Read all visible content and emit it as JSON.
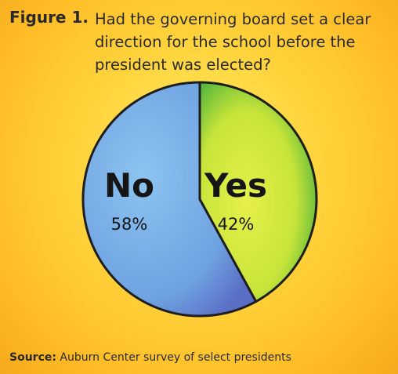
{
  "figure_label": "Figure 1.",
  "question": "Had the governing board set a clear direction for the school before the president was elected?",
  "source_label": "Source:",
  "source_text": " Auburn Center survey of select presidents",
  "colors": {
    "no": "#7ab0e8",
    "no_dark": "#5d74c9",
    "yes": "#d6ea40",
    "yes_dark": "#44b43a",
    "background": "#ffd23a"
  },
  "chart_data": {
    "type": "pie",
    "title": "Had the governing board set a clear direction for the school before the president was elected?",
    "slices": [
      {
        "label": "No",
        "value": 58,
        "display": "58%"
      },
      {
        "label": "Yes",
        "value": 42,
        "display": "42%"
      }
    ]
  }
}
